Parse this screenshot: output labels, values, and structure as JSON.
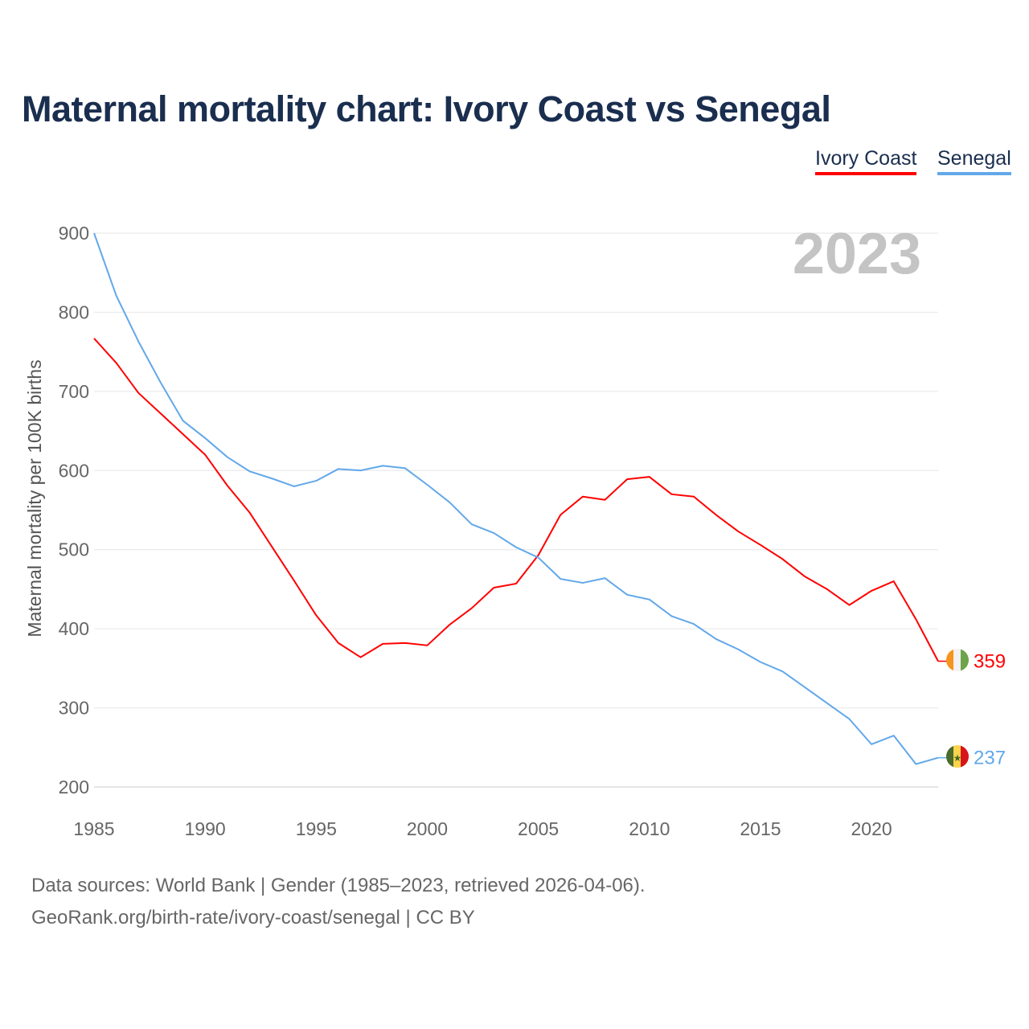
{
  "chart_data": {
    "type": "line",
    "title": "Maternal mortality chart: Ivory Coast vs Senegal",
    "ylabel": "Maternal mortality per 100K births",
    "xlabel": "",
    "xlim": [
      1985,
      2023
    ],
    "ylim": [
      200,
      900
    ],
    "yticks": [
      200,
      300,
      400,
      500,
      600,
      700,
      800,
      900
    ],
    "xticks": [
      1985,
      1990,
      1995,
      2000,
      2005,
      2010,
      2015,
      2020
    ],
    "grid": true,
    "legend_position": "top-right",
    "year_label": "2023",
    "x": [
      1985,
      1986,
      1987,
      1988,
      1989,
      1990,
      1991,
      1992,
      1993,
      1994,
      1995,
      1996,
      1997,
      1998,
      1999,
      2000,
      2001,
      2002,
      2003,
      2004,
      2005,
      2006,
      2007,
      2008,
      2009,
      2010,
      2011,
      2012,
      2013,
      2014,
      2015,
      2016,
      2017,
      2018,
      2019,
      2020,
      2021,
      2022,
      2023
    ],
    "series": [
      {
        "name": "Ivory Coast",
        "color": "#ff0000",
        "end_label": "359",
        "flag": "ivory-coast-flag",
        "values": [
          767,
          736,
          698,
          672,
          646,
          620,
          581,
          547,
          504,
          461,
          417,
          382,
          364,
          381,
          382,
          379,
          405,
          426,
          452,
          457,
          493,
          544,
          567,
          563,
          589,
          592,
          570,
          567,
          544,
          523,
          506,
          488,
          466,
          450,
          430,
          448,
          460,
          412,
          359
        ]
      },
      {
        "name": "Senegal",
        "color": "#62a8ea",
        "end_label": "237",
        "flag": "senegal-flag",
        "values": [
          900,
          821,
          763,
          711,
          663,
          641,
          617,
          599,
          590,
          580,
          587,
          602,
          600,
          606,
          603,
          582,
          560,
          532,
          521,
          503,
          490,
          463,
          458,
          464,
          443,
          437,
          416,
          406,
          387,
          374,
          358,
          346,
          326,
          306,
          286,
          254,
          265,
          229,
          237
        ]
      }
    ]
  },
  "footer": {
    "line1": "Data sources: World Bank | Gender (1985–2023, retrieved 2026-04-06).",
    "line2": "GeoRank.org/birth-rate/ivory-coast/senegal | CC BY"
  }
}
